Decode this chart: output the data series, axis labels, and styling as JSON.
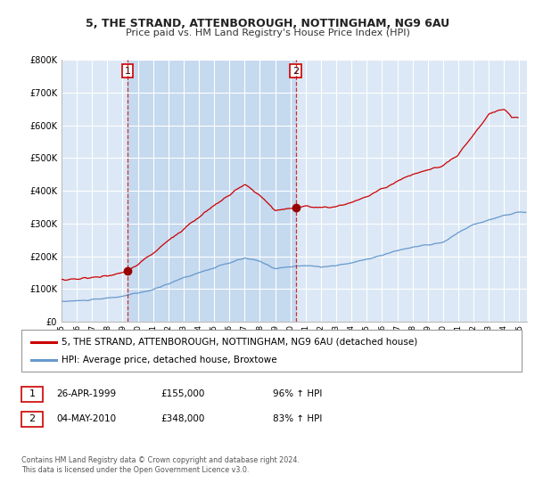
{
  "title": "5, THE STRAND, ATTENBOROUGH, NOTTINGHAM, NG9 6AU",
  "subtitle": "Price paid vs. HM Land Registry's House Price Index (HPI)",
  "ylim": [
    0,
    800000
  ],
  "yticks": [
    0,
    100000,
    200000,
    300000,
    400000,
    500000,
    600000,
    700000,
    800000
  ],
  "ytick_labels": [
    "£0",
    "£100K",
    "£200K",
    "£300K",
    "£400K",
    "£500K",
    "£600K",
    "£700K",
    "£800K"
  ],
  "xlim_start": 1995.0,
  "xlim_end": 2025.5,
  "background_color": "#ffffff",
  "plot_bg_color": "#dce8f5",
  "highlight_bg_color": "#c5d9ef",
  "grid_color": "#ffffff",
  "legend_entry1": "5, THE STRAND, ATTENBOROUGH, NOTTINGHAM, NG9 6AU (detached house)",
  "legend_entry2": "HPI: Average price, detached house, Broxtowe",
  "sale1_date": "26-APR-1999",
  "sale1_price": "£155,000",
  "sale1_hpi": "96% ↑ HPI",
  "sale2_date": "04-MAY-2010",
  "sale2_price": "£348,000",
  "sale2_hpi": "83% ↑ HPI",
  "footer": "Contains HM Land Registry data © Crown copyright and database right 2024.\nThis data is licensed under the Open Government Licence v3.0.",
  "line1_color": "#cc0000",
  "line2_color": "#6699cc",
  "marker_color": "#990000",
  "dashed_line_color": "#cc0000",
  "sale1_x": 1999.32,
  "sale1_y": 155000,
  "sale2_x": 2010.34,
  "sale2_y": 348000,
  "title_fontsize": 9,
  "subtitle_fontsize": 8,
  "tick_fontsize": 7,
  "legend_fontsize": 7.5
}
